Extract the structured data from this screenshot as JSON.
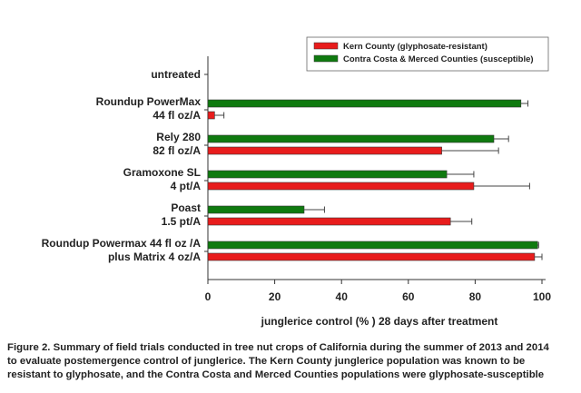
{
  "chart_data": {
    "type": "bar",
    "orientation": "horizontal",
    "categories": [
      [
        "untreated"
      ],
      [
        "Roundup PowerMax",
        "44 fl oz/A"
      ],
      [
        "Rely 280",
        "82 fl oz/A"
      ],
      [
        "Gramoxone SL",
        "4 pt/A"
      ],
      [
        "Poast",
        "1.5 pt/A"
      ],
      [
        "Roundup Powermax 44 fl oz /A",
        "plus Matrix 4 oz/A"
      ]
    ],
    "series": [
      {
        "name": "Contra Costa & Merced Counties (susceptible)",
        "color": "#0f7a0f",
        "values": [
          0,
          93.7,
          85.6,
          71.5,
          28.8,
          98.7
        ],
        "error": [
          0,
          2.1,
          4.4,
          8.1,
          6.1,
          0.3
        ]
      },
      {
        "name": "Kern County (glyphosate-resistant)",
        "color": "#e81c1c",
        "values": [
          0,
          2,
          70,
          79.6,
          72.6,
          97.8
        ],
        "error": [
          0,
          2.8,
          17,
          16.7,
          6.4,
          2.2
        ]
      }
    ],
    "xlabel": "junglerice control (% ) 28 days after treatment",
    "ylabel": "",
    "xlim": [
      0,
      100
    ],
    "xticks": [
      0,
      20,
      40,
      60,
      80,
      100
    ],
    "legend_position": "top-right",
    "grid": false
  },
  "caption": [
    "Figure 2. Summary of field trials conducted in tree nut crops of California during the summer of 2013 and 2014",
    "to evaluate postemergence control of junglerice. The Kern County junglerice population was known to be",
    "resistant to glyphosate, and the Contra Costa and Merced Counties populations were glyphosate-susceptible"
  ]
}
